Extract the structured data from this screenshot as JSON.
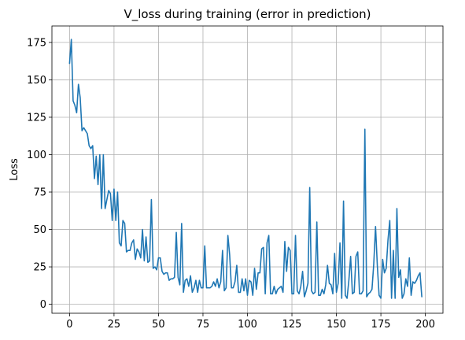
{
  "chart_data": {
    "type": "line",
    "title": "V_loss during training (error in prediction)",
    "xlabel": "",
    "ylabel": "Loss",
    "xlim": [
      -9.9,
      209.9
    ],
    "ylim": [
      -6,
      186
    ],
    "xticks": [
      0,
      25,
      50,
      75,
      100,
      125,
      150,
      175,
      200
    ],
    "yticks": [
      0,
      25,
      50,
      75,
      100,
      125,
      150,
      175
    ],
    "grid": true,
    "colors": {
      "series": "#1f77b4"
    },
    "series": [
      {
        "values": [
          161,
          177,
          136,
          133,
          128,
          147,
          138,
          116,
          118,
          116,
          114,
          106,
          104,
          106,
          84,
          99,
          80,
          100,
          64,
          100,
          64,
          70,
          76,
          74,
          56,
          77,
          56,
          75,
          41,
          39,
          56,
          54,
          35,
          36,
          36,
          41,
          43,
          30,
          37,
          35,
          31,
          50,
          29,
          45,
          28,
          29,
          70,
          24,
          25,
          23,
          31,
          31,
          22,
          20,
          21,
          21,
          16,
          17,
          17,
          18,
          48,
          18,
          13,
          54,
          8,
          16,
          17,
          12,
          19,
          8,
          11,
          16,
          8,
          16,
          11,
          11,
          39,
          11,
          11,
          11,
          12,
          15,
          12,
          17,
          11,
          15,
          36,
          9,
          11,
          46,
          33,
          11,
          11,
          15,
          26,
          8,
          8,
          17,
          9,
          17,
          6,
          16,
          15,
          6,
          24,
          10,
          21,
          21,
          37,
          38,
          7,
          41,
          46,
          7,
          7,
          12,
          7,
          10,
          11,
          12,
          8,
          42,
          22,
          38,
          36,
          7,
          7,
          46,
          9,
          7,
          12,
          22,
          5,
          9,
          14,
          78,
          9,
          7,
          8,
          55,
          6,
          6,
          10,
          7,
          13,
          26,
          14,
          13,
          7,
          34,
          8,
          14,
          41,
          4,
          69,
          6,
          4,
          16,
          32,
          7,
          8,
          32,
          35,
          7,
          7,
          9,
          117,
          5,
          7,
          8,
          10,
          27,
          52,
          26,
          6,
          4,
          30,
          21,
          24,
          43,
          56,
          4,
          36,
          4,
          64,
          18,
          23,
          4,
          7,
          17,
          12,
          31,
          6,
          15,
          14,
          16,
          19,
          21,
          5
        ]
      }
    ]
  }
}
